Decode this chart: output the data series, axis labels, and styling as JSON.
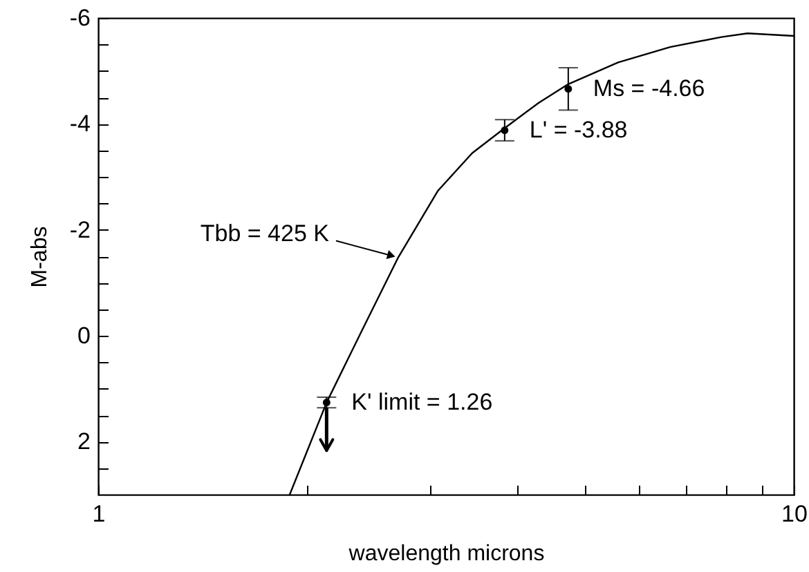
{
  "chart_data": {
    "type": "line",
    "xlabel": "wavelength microns",
    "ylabel": "M-abs",
    "log": "x",
    "xlim": [
      1,
      10
    ],
    "xticks": [
      1,
      {
        "value": 2,
        "label": null
      },
      {
        "value": 3,
        "label": null
      },
      {
        "value": 4,
        "label": null
      },
      {
        "value": 5,
        "label": null
      },
      {
        "value": 6,
        "label": null
      },
      {
        "value": 7,
        "label": null
      },
      {
        "value": 8,
        "label": null
      },
      {
        "value": 9,
        "label": null
      },
      10
    ],
    "ylim": [
      3,
      -6
    ],
    "yticks": [
      -6,
      {
        "value": -5.5,
        "label": null
      },
      {
        "value": -5,
        "label": null
      },
      {
        "value": -4.5,
        "label": null
      },
      -4,
      {
        "value": -3.5,
        "label": null
      },
      {
        "value": -3,
        "label": null
      },
      {
        "value": -2.5,
        "label": null
      },
      -2,
      {
        "value": -1.5,
        "label": null
      },
      {
        "value": -1,
        "label": null
      },
      {
        "value": -0.5,
        "label": null
      },
      0,
      {
        "value": 0.5,
        "label": null
      },
      {
        "value": 1,
        "label": null
      },
      {
        "value": 1.5,
        "label": null
      },
      2,
      {
        "value": 2.5,
        "label": null
      }
    ],
    "series": [
      {
        "type": "line",
        "color": "#000000",
        "x": [
          1.885,
          2.13,
          2.38,
          2.7,
          3.08,
          3.45,
          3.84,
          4.3,
          4.74,
          5.59,
          6.64,
          7.87,
          8.58,
          10
        ],
        "values": [
          3,
          1.26,
          -0.03,
          -1.48,
          -2.74,
          -3.45,
          -3.92,
          -4.4,
          -4.75,
          -5.16,
          -5.45,
          -5.64,
          -5.71,
          -5.66
        ]
      },
      {
        "type": "scatter",
        "color": "#000000",
        "x": [
          2.13,
          3.84,
          4.74
        ],
        "values": [
          1.26,
          -3.88,
          -4.66
        ],
        "errors": [
          0.1,
          0.2,
          0.4
        ]
      }
    ],
    "annotations": [
      {
        "text": "K' limit = 1.26",
        "x": 2.13,
        "y": 1.26
      },
      {
        "text": "L' = -3.88",
        "x": 3.84,
        "y": -3.88
      },
      {
        "text": "Ms = -4.66",
        "x": 4.74,
        "y": -4.66
      },
      {
        "text": "Tbb = 425 K",
        "x": 2.7,
        "y": -1.48
      }
    ]
  }
}
